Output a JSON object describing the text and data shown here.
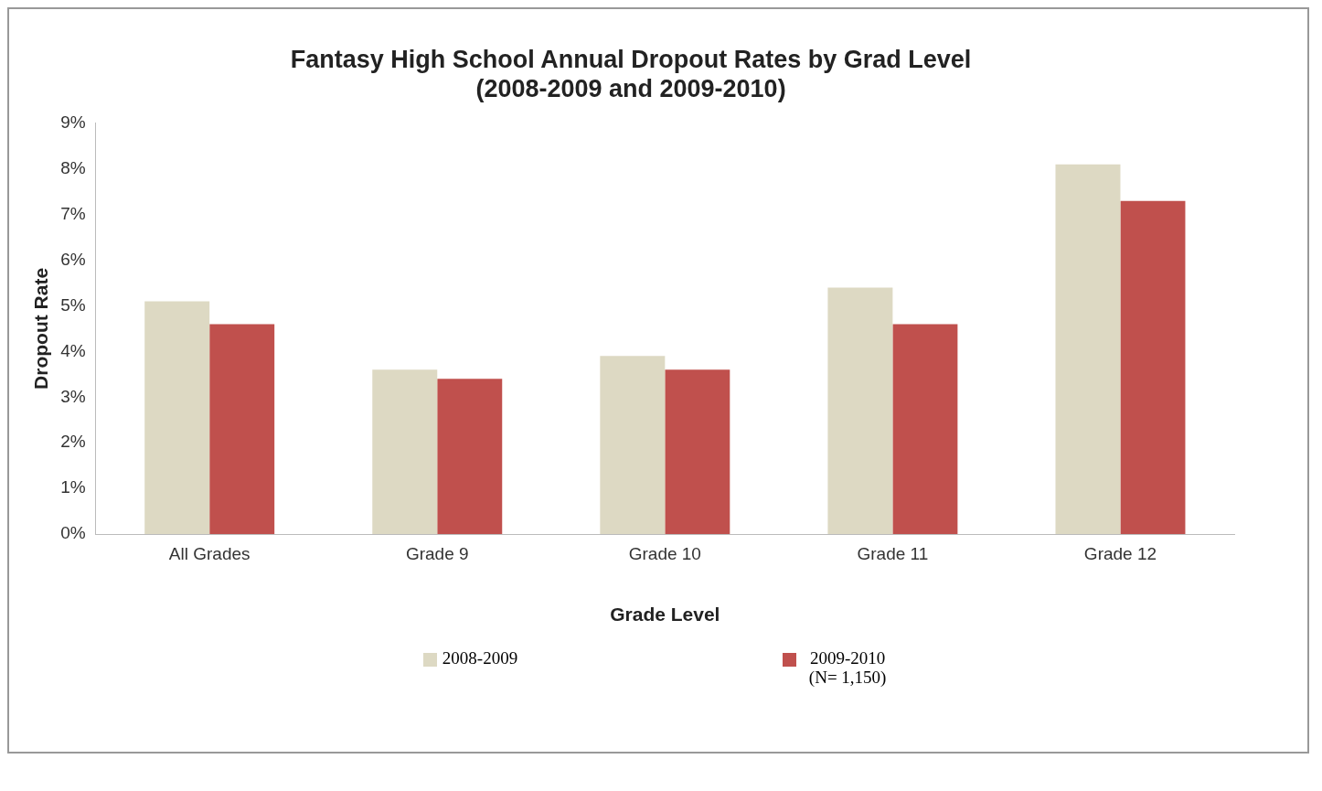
{
  "chart_data": {
    "type": "bar",
    "title": "Fantasy High School Annual Dropout Rates by Grad Level\n(2008-2009 and 2009-2010)",
    "xlabel": "Grade Level",
    "ylabel": "Dropout Rate",
    "categories": [
      "All Grades",
      "Grade 9",
      "Grade 10",
      "Grade 11",
      "Grade 12"
    ],
    "series": [
      {
        "name": "2008-2009",
        "color": "#ddd9c3",
        "values": [
          5.1,
          3.6,
          3.9,
          5.4,
          8.1
        ]
      },
      {
        "name": "2009-2010 (N= 1,150)",
        "color": "#c0504d",
        "values": [
          4.6,
          3.4,
          3.6,
          4.6,
          7.3
        ]
      }
    ],
    "ylim": [
      0,
      9
    ],
    "yticks": [
      {
        "value": 0,
        "label": "0%"
      },
      {
        "value": 1,
        "label": "1%"
      },
      {
        "value": 2,
        "label": "2%"
      },
      {
        "value": 3,
        "label": "3%"
      },
      {
        "value": 4,
        "label": "4%"
      },
      {
        "value": 5,
        "label": "5%"
      },
      {
        "value": 6,
        "label": "6%"
      },
      {
        "value": 7,
        "label": "7%"
      },
      {
        "value": 8,
        "label": "8%"
      },
      {
        "value": 9,
        "label": "9%"
      }
    ],
    "grid": false,
    "legend": "bottom"
  }
}
